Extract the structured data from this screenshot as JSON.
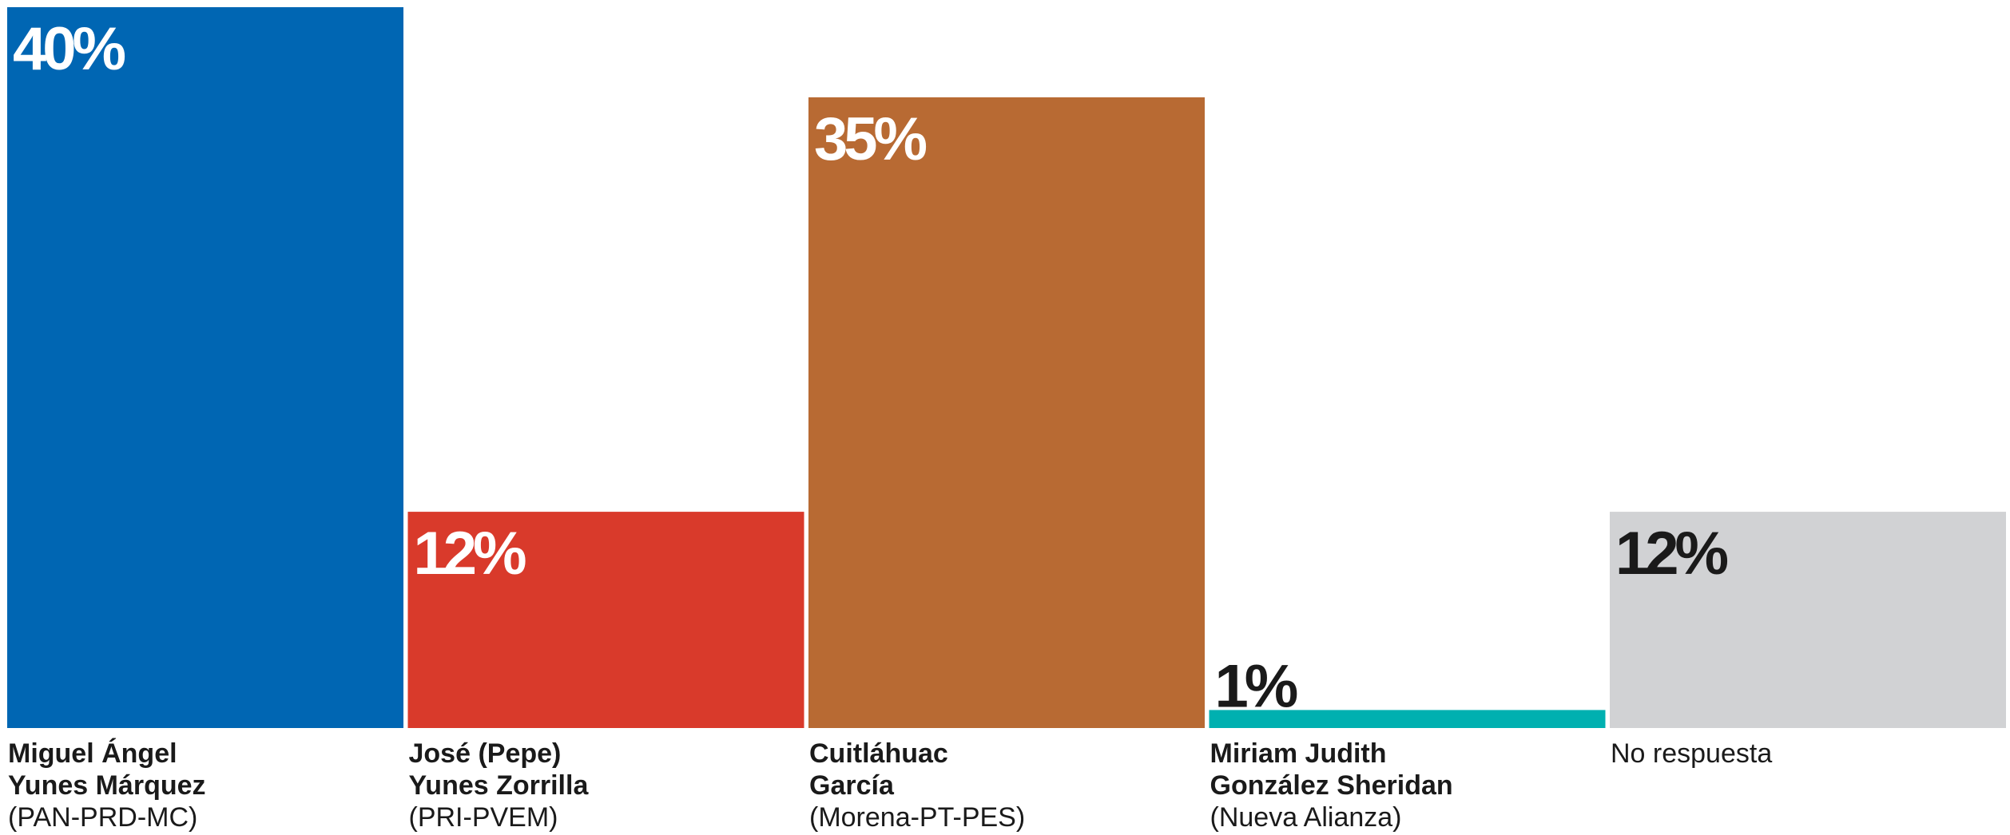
{
  "chart_data": {
    "type": "bar",
    "ylim": [
      0,
      40
    ],
    "grid": false,
    "categories": [
      {
        "name_lines": [
          "Miguel Ángel",
          "Yunes Márquez"
        ],
        "party": "(PAN-PRD-MC)",
        "name_bold": true,
        "value": 40,
        "label": "40%",
        "color": "#0066b3",
        "label_color": "#ffffff"
      },
      {
        "name_lines": [
          "José (Pepe)",
          "Yunes Zorrilla"
        ],
        "party": "(PRI-PVEM)",
        "name_bold": true,
        "value": 12,
        "label": "12%",
        "color": "#d93a2b",
        "label_color": "#ffffff"
      },
      {
        "name_lines": [
          "Cuitláhuac",
          "García"
        ],
        "party": "(Morena-PT-PES)",
        "name_bold": true,
        "value": 35,
        "label": "35%",
        "color": "#b86a33",
        "label_color": "#ffffff"
      },
      {
        "name_lines": [
          "Miriam Judith",
          "González Sheridan"
        ],
        "party": "(Nueva Alianza)",
        "name_bold": true,
        "value": 1,
        "label": "1%",
        "color": "#00b0b0",
        "label_color": "#1a1a1a"
      },
      {
        "name_lines": [
          "No respuesta"
        ],
        "party": "",
        "name_bold": false,
        "value": 12,
        "label": "12%",
        "color": "#d1d2d4",
        "label_color": "#1a1a1a"
      }
    ]
  }
}
